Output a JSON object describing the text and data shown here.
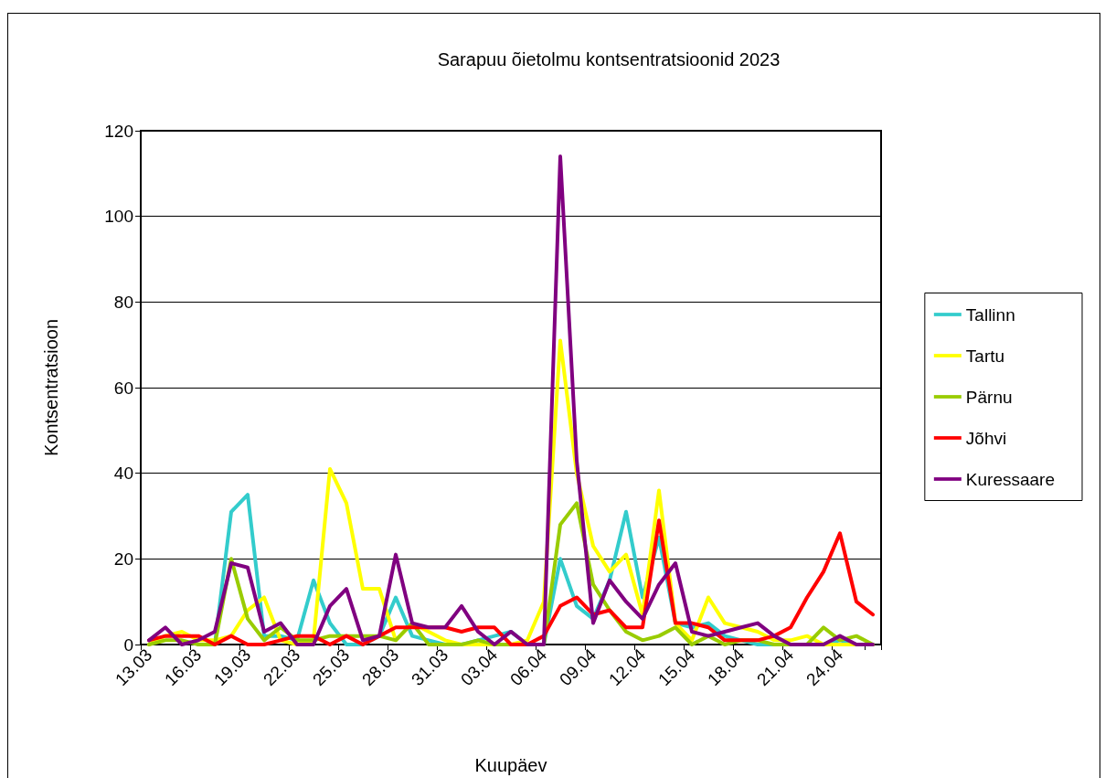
{
  "chart_data": {
    "type": "line",
    "title": "Sarapuu õietolmu kontsentratsioonid 2023",
    "xlabel": "Kuupäev",
    "ylabel": "Kontsentratsioon",
    "categories": [
      "13.03",
      null,
      null,
      "16.03",
      null,
      null,
      "19.03",
      null,
      null,
      "22.03",
      null,
      null,
      "25.03",
      null,
      null,
      "28.03",
      null,
      null,
      "31.03",
      null,
      null,
      "03.04",
      null,
      null,
      "06.04",
      null,
      null,
      "09.04",
      null,
      null,
      "12.04",
      null,
      null,
      "15.04",
      null,
      null,
      "18.04",
      null,
      null,
      "21.04",
      null,
      null,
      "24.04",
      null,
      null
    ],
    "series": [
      {
        "name": "Tallinn",
        "color": "#33cccc",
        "values": [
          null,
          null,
          null,
          0,
          0,
          31,
          35,
          2,
          2,
          1,
          15,
          5,
          0,
          0,
          2,
          11,
          2,
          1,
          0,
          0,
          1,
          2,
          3,
          0,
          0,
          20,
          9,
          6,
          15,
          31,
          11,
          25,
          5,
          4,
          5,
          2,
          1,
          0,
          0,
          0,
          0,
          0,
          1,
          0,
          0
        ]
      },
      {
        "name": "Tartu",
        "color": "#ffff00",
        "values": [
          0,
          2,
          3,
          1,
          1,
          2,
          8,
          11,
          1,
          0,
          1,
          41,
          33,
          13,
          13,
          1,
          5,
          3,
          1,
          0,
          0,
          0,
          0,
          1,
          10,
          71,
          40,
          23,
          17,
          21,
          7,
          36,
          5,
          1,
          11,
          5,
          4,
          3,
          1,
          1,
          2,
          0,
          0,
          0,
          0
        ]
      },
      {
        "name": "Pärnu",
        "color": "#99cc00",
        "values": [
          0,
          1,
          1,
          0,
          0,
          20,
          6,
          1,
          4,
          1,
          1,
          2,
          2,
          2,
          2,
          1,
          5,
          0,
          0,
          0,
          1,
          0,
          0,
          0,
          0,
          28,
          33,
          14,
          8,
          3,
          1,
          2,
          4,
          0,
          2,
          0,
          1,
          1,
          0,
          0,
          0,
          4,
          1,
          2,
          0
        ]
      },
      {
        "name": "Jõhvi",
        "color": "#ff0000",
        "values": [
          1,
          2,
          2,
          2,
          0,
          2,
          0,
          0,
          1,
          2,
          2,
          0,
          2,
          0,
          2,
          4,
          4,
          4,
          4,
          3,
          4,
          4,
          0,
          0,
          2,
          9,
          11,
          7,
          8,
          4,
          4,
          29,
          5,
          5,
          4,
          1,
          1,
          1,
          2,
          4,
          11,
          17,
          26,
          10,
          7
        ]
      },
      {
        "name": "Kuressaare",
        "color": "#800080",
        "values": [
          1,
          4,
          0,
          1,
          3,
          19,
          18,
          3,
          5,
          0,
          0,
          9,
          13,
          1,
          2,
          21,
          5,
          4,
          4,
          9,
          3,
          0,
          3,
          0,
          0,
          114,
          43,
          5,
          15,
          10,
          6,
          14,
          19,
          3,
          2,
          3,
          4,
          5,
          2,
          0,
          0,
          0,
          2,
          0,
          0
        ]
      }
    ],
    "ylim": [
      0,
      120
    ],
    "yticks": [
      0,
      20,
      40,
      60,
      80,
      100,
      120
    ],
    "grid": "y",
    "legend": "right",
    "marker": "none",
    "line_style": "solid"
  }
}
